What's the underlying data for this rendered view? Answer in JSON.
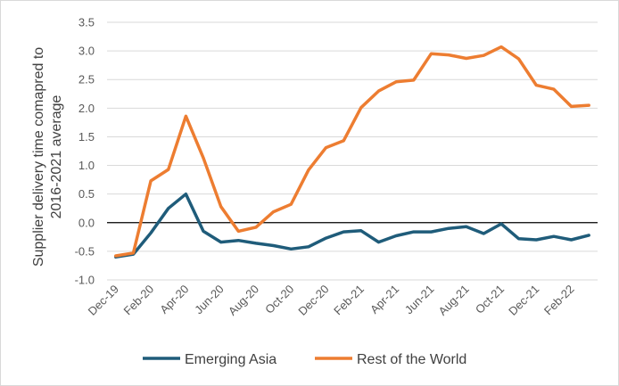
{
  "chart_data": {
    "type": "line",
    "title": "",
    "xlabel": "",
    "ylabel": [
      "Supplier delivery time comapred to",
      "2016-2021 average"
    ],
    "ylim": [
      -1.0,
      3.5
    ],
    "ytick_values": [
      -1.0,
      -0.5,
      0.0,
      0.5,
      1.0,
      1.5,
      2.0,
      2.5,
      3.0,
      3.5
    ],
    "ytick_labels": [
      "-1.0",
      "-0.5",
      "0.0",
      "0.5",
      "1.0",
      "1.5",
      "2.0",
      "2.5",
      "3.0",
      "3.5"
    ],
    "x": [
      "Dec-19",
      "Jan-20",
      "Feb-20",
      "Mar-20",
      "Apr-20",
      "May-20",
      "Jun-20",
      "Jul-20",
      "Aug-20",
      "Sep-20",
      "Oct-20",
      "Nov-20",
      "Dec-20",
      "Jan-21",
      "Feb-21",
      "Mar-21",
      "Apr-21",
      "May-21",
      "Jun-21",
      "Jul-21",
      "Aug-21",
      "Sep-21",
      "Oct-21",
      "Nov-21",
      "Dec-21",
      "Jan-22",
      "Feb-22",
      "Mar-22"
    ],
    "xtick_labels": [
      "Dec-19",
      "Feb-20",
      "Apr-20",
      "Jun-20",
      "Aug-20",
      "Oct-20",
      "Dec-20",
      "Feb-21",
      "Apr-21",
      "Jun-21",
      "Aug-21",
      "Oct-21",
      "Dec-21",
      "Feb-22"
    ],
    "grid": "horizontal",
    "legend_position": "bottom",
    "series": [
      {
        "name": "Emerging Asia",
        "color": "#1f5c7a",
        "values": [
          -0.6,
          -0.55,
          -0.18,
          0.25,
          0.5,
          -0.15,
          -0.34,
          -0.31,
          -0.36,
          -0.4,
          -0.46,
          -0.42,
          -0.27,
          -0.16,
          -0.14,
          -0.34,
          -0.23,
          -0.16,
          -0.16,
          -0.1,
          -0.07,
          -0.19,
          -0.02,
          -0.28,
          -0.3,
          -0.24,
          -0.3,
          -0.22
        ]
      },
      {
        "name": "Rest of the World",
        "color": "#ed7d31",
        "values": [
          -0.58,
          -0.53,
          0.73,
          0.93,
          1.86,
          1.13,
          0.28,
          -0.15,
          -0.08,
          0.19,
          0.32,
          0.92,
          1.31,
          1.43,
          2.01,
          2.3,
          2.46,
          2.49,
          2.95,
          2.93,
          2.87,
          2.92,
          3.07,
          2.86,
          2.4,
          2.33,
          2.03,
          2.05
        ]
      }
    ]
  }
}
